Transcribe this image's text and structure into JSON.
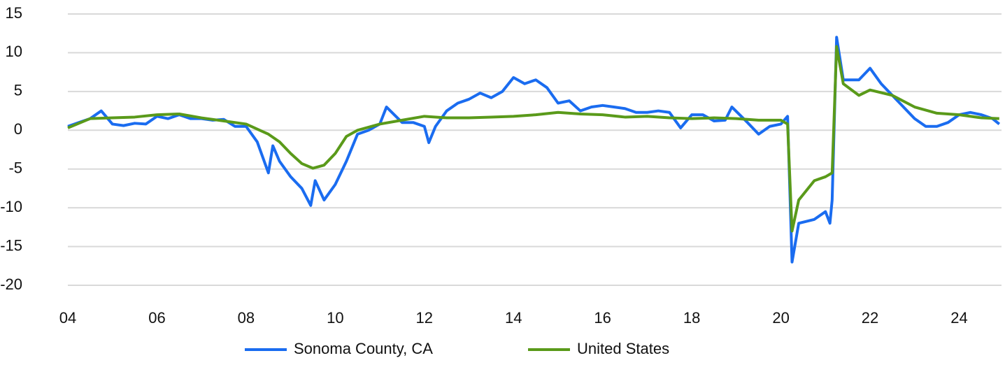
{
  "chart_data": {
    "type": "line",
    "xlim": [
      4,
      24.95
    ],
    "xticks": [
      {
        "value": 4,
        "label": "04"
      },
      {
        "value": 6,
        "label": "06"
      },
      {
        "value": 8,
        "label": "08"
      },
      {
        "value": 10,
        "label": "10"
      },
      {
        "value": 12,
        "label": "12"
      },
      {
        "value": 14,
        "label": "14"
      },
      {
        "value": 16,
        "label": "16"
      },
      {
        "value": 18,
        "label": "18"
      },
      {
        "value": 20,
        "label": "20"
      },
      {
        "value": 22,
        "label": "22"
      },
      {
        "value": 24,
        "label": "24"
      }
    ],
    "ylim": [
      -20,
      15
    ],
    "yticks": [
      15,
      10,
      5,
      0,
      -5,
      -10,
      -15,
      -20
    ],
    "grid": true,
    "legend": "bottom",
    "series": [
      {
        "name": "Sonoma County, CA",
        "color": "#1a6cf0",
        "x": [
          4,
          4.25,
          4.5,
          4.75,
          5,
          5.25,
          5.5,
          5.75,
          6,
          6.25,
          6.5,
          6.75,
          7,
          7.25,
          7.5,
          7.75,
          8,
          8.25,
          8.5,
          8.6,
          8.75,
          9,
          9.25,
          9.45,
          9.55,
          9.75,
          10,
          10.25,
          10.5,
          10.75,
          11,
          11.15,
          11.5,
          11.75,
          12,
          12.1,
          12.25,
          12.5,
          12.75,
          13,
          13.25,
          13.5,
          13.75,
          14,
          14.25,
          14.5,
          14.75,
          15,
          15.25,
          15.5,
          15.75,
          16,
          16.25,
          16.5,
          16.75,
          17,
          17.25,
          17.5,
          17.75,
          18,
          18.25,
          18.5,
          18.75,
          18.9,
          19.25,
          19.5,
          19.75,
          20,
          20.15,
          20.25,
          20.4,
          20.75,
          21,
          21.1,
          21.15,
          21.25,
          21.4,
          21.75,
          22,
          22.25,
          22.5,
          22.75,
          23,
          23.25,
          23.5,
          23.75,
          24,
          24.25,
          24.5,
          24.75,
          24.9
        ],
        "values": [
          0.5,
          1.0,
          1.5,
          2.5,
          0.8,
          0.6,
          0.9,
          0.8,
          1.8,
          1.5,
          2.0,
          1.5,
          1.5,
          1.3,
          1.4,
          0.5,
          0.5,
          -1.5,
          -5.5,
          -2.0,
          -4.0,
          -6.0,
          -7.5,
          -9.7,
          -6.5,
          -9.0,
          -7.0,
          -4.0,
          -0.5,
          0.0,
          0.8,
          3.0,
          1.0,
          1.0,
          0.5,
          -1.6,
          0.5,
          2.5,
          3.5,
          4.0,
          4.8,
          4.2,
          5.0,
          6.8,
          6.0,
          6.5,
          5.5,
          3.5,
          3.8,
          2.5,
          3.0,
          3.2,
          3.0,
          2.8,
          2.3,
          2.3,
          2.5,
          2.3,
          0.3,
          2.0,
          2.0,
          1.2,
          1.3,
          3.0,
          1.0,
          -0.5,
          0.5,
          0.8,
          1.8,
          -17.0,
          -12.0,
          -11.5,
          -10.5,
          -12.0,
          -9.0,
          12.0,
          6.5,
          6.5,
          8.0,
          6.0,
          4.5,
          3.0,
          1.5,
          0.5,
          0.5,
          1.0,
          2.0,
          2.3,
          2.0,
          1.5,
          0.8
        ]
      },
      {
        "name": "United States",
        "color": "#5a9a1a",
        "x": [
          4,
          4.5,
          5,
          5.5,
          6,
          6.5,
          7,
          7.5,
          8,
          8.5,
          8.75,
          9,
          9.25,
          9.5,
          9.75,
          10,
          10.25,
          10.5,
          11,
          11.5,
          12,
          12.5,
          13,
          13.5,
          14,
          14.5,
          15,
          15.5,
          16,
          16.5,
          17,
          17.5,
          18,
          18.5,
          19,
          19.5,
          20,
          20.15,
          20.25,
          20.4,
          20.75,
          21,
          21.15,
          21.25,
          21.4,
          21.75,
          22,
          22.5,
          23,
          23.5,
          24,
          24.5,
          24.9
        ],
        "values": [
          0.3,
          1.5,
          1.6,
          1.7,
          2.0,
          2.1,
          1.6,
          1.2,
          0.8,
          -0.5,
          -1.5,
          -3.0,
          -4.3,
          -4.9,
          -4.5,
          -3.0,
          -0.8,
          0.0,
          0.8,
          1.3,
          1.8,
          1.6,
          1.6,
          1.7,
          1.8,
          2.0,
          2.3,
          2.1,
          2.0,
          1.7,
          1.8,
          1.6,
          1.5,
          1.6,
          1.5,
          1.3,
          1.3,
          0.8,
          -13.0,
          -9.0,
          -6.5,
          -6.0,
          -5.5,
          10.8,
          6.0,
          4.5,
          5.2,
          4.5,
          3.0,
          2.2,
          2.0,
          1.6,
          1.5
        ]
      }
    ]
  }
}
